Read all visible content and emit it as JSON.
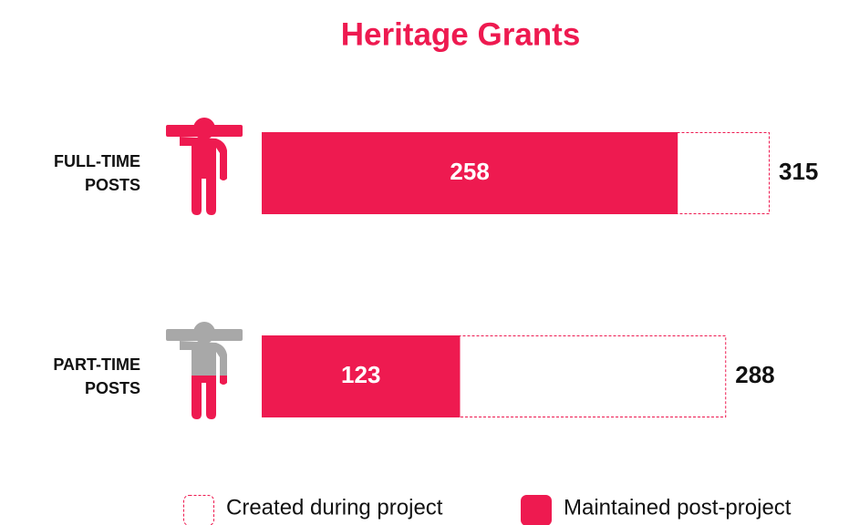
{
  "chart_data": {
    "type": "bar",
    "orientation": "horizontal",
    "overlap": true,
    "title": "Heritage Grants",
    "categories": [
      "FULL-TIME POSTS",
      "PART-TIME POSTS"
    ],
    "series": [
      {
        "name": "Created during project",
        "color": "#ee1a50",
        "outline": true,
        "values": [
          315,
          288
        ]
      },
      {
        "name": "Maintained post-project",
        "color": "#ee1a50",
        "outline": false,
        "values": [
          258,
          123
        ]
      }
    ]
  }
}
